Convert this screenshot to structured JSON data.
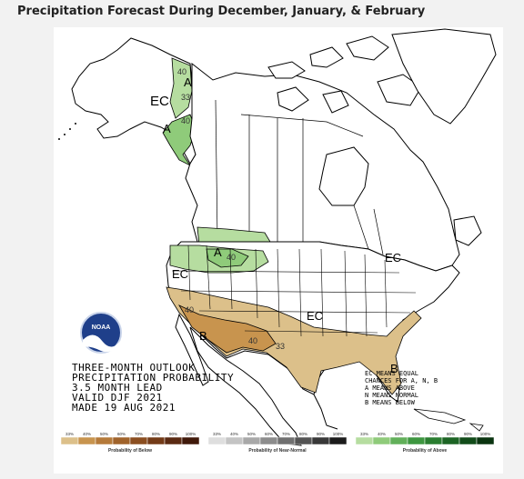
{
  "page": {
    "title": "Precipitation Forecast During December, January, & February"
  },
  "outlook": {
    "line1": "THREE-MONTH OUTLOOK",
    "line2": "PRECIPITATION PROBABILITY",
    "line3": "3.5 MONTH LEAD",
    "line4": "VALID DJF 2021",
    "line5": "MADE 19 AUG 2021"
  },
  "logo": {
    "text": "NOAA"
  },
  "legend_key": {
    "line1": "EC MEANS EQUAL",
    "line2": "CHANCES FOR A, N, B",
    "line3": "A MEANS ABOVE",
    "line4": "N MEANS NORMAL",
    "line5": "B MEANS BELOW"
  },
  "map_labels": {
    "ec_alaska": "EC",
    "ec_west": "EC",
    "ec_central": "EC",
    "ec_east": "EC",
    "a_alaska_north": "A",
    "a_alaska_south": "A",
    "a_northwest": "A",
    "b_southwest": "B",
    "b_florida": "B",
    "c40_alaska_north": "40",
    "c33_alaska": "33",
    "c40_alaska_south": "40",
    "c40_northwest": "40",
    "c40_southwest": "40",
    "c40_newmexico": "40",
    "c33_texas": "33"
  },
  "colors": {
    "above_light": "#b6dda0",
    "above_mid": "#8fcb7a",
    "below_light": "#dcc08a",
    "below_mid": "#c8944e",
    "border": "#000000"
  },
  "scale": {
    "below": {
      "title": "Probability of Below",
      "ticks": [
        "33%",
        "40%",
        "50%",
        "60%",
        "70%",
        "80%",
        "90%",
        "100%"
      ],
      "colors": [
        "#dcc08a",
        "#c8944e",
        "#b57a3a",
        "#a0632b",
        "#8b4e20",
        "#733b18",
        "#5a2a12",
        "#40190a"
      ]
    },
    "normal": {
      "title": "Probability of Near-Normal",
      "ticks": [
        "33%",
        "40%",
        "50%",
        "60%",
        "70%",
        "80%",
        "90%",
        "100%"
      ],
      "colors": [
        "#dedede",
        "#c4c4c4",
        "#a8a8a8",
        "#8c8c8c",
        "#707070",
        "#545454",
        "#383838",
        "#1c1c1c"
      ]
    },
    "above": {
      "title": "Probability of Above",
      "ticks": [
        "33%",
        "40%",
        "50%",
        "60%",
        "70%",
        "80%",
        "90%",
        "100%"
      ],
      "colors": [
        "#b6dda0",
        "#8fcb7a",
        "#62b05a",
        "#3e9640",
        "#2a7d30",
        "#1c6424",
        "#124c1a",
        "#0a3410"
      ]
    }
  }
}
